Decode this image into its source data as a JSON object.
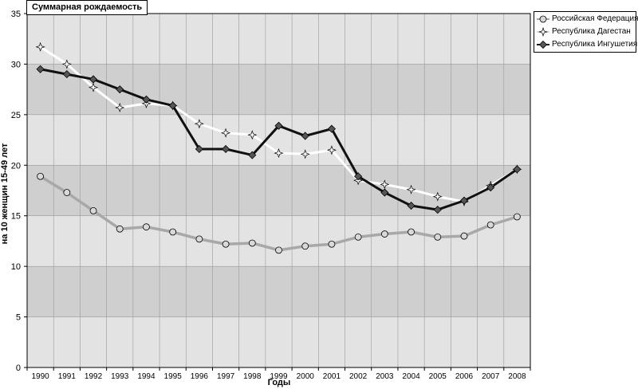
{
  "chart_data": {
    "type": "line",
    "title": "Суммарная рождаемость",
    "xlabel": "Годы",
    "ylabel": "на 10 женщин 15-49 лет",
    "x": [
      "1990",
      "1991",
      "1992",
      "1993",
      "1994",
      "1995",
      "1996",
      "1997",
      "1998",
      "1999",
      "2000",
      "2001",
      "2002",
      "2003",
      "2004",
      "2005",
      "2006",
      "2007",
      "2008"
    ],
    "ylim": [
      0,
      35
    ],
    "yticks": [
      0,
      5,
      10,
      15,
      20,
      25,
      30,
      35
    ],
    "grid": true,
    "legend_position": "top-right",
    "series": [
      {
        "name": "Российская Федерация",
        "color": "#a8a8a8",
        "marker": "circle",
        "values": [
          18.9,
          17.3,
          15.5,
          13.7,
          13.9,
          13.4,
          12.7,
          12.2,
          12.3,
          11.6,
          12.0,
          12.2,
          12.9,
          13.2,
          13.4,
          12.9,
          13.0,
          14.1,
          14.9
        ]
      },
      {
        "name": "Республика Дагестан",
        "color": "#ffffff",
        "marker": "star",
        "values": [
          31.7,
          30.0,
          27.7,
          25.7,
          26.1,
          25.9,
          24.1,
          23.2,
          23.0,
          21.2,
          21.1,
          21.5,
          18.5,
          18.1,
          17.6,
          16.9,
          16.4,
          18.0,
          19.6
        ]
      },
      {
        "name": "Республика Ингушетия",
        "color": "#111111",
        "marker": "diamond",
        "values": [
          29.5,
          29.0,
          28.5,
          27.5,
          26.5,
          25.9,
          21.6,
          21.6,
          21.0,
          23.9,
          22.9,
          23.6,
          18.9,
          17.3,
          16.0,
          15.6,
          16.5,
          17.8,
          19.6
        ]
      }
    ]
  }
}
